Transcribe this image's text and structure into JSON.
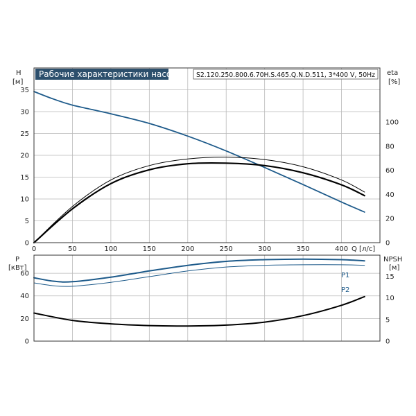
{
  "chart_data": [
    {
      "type": "line",
      "title": "Рабочие характеристики насоса",
      "subtitle": "S2.120.250.800.6.70H.S.465.Q.N.D.511, 3*400 V, 50Hz",
      "xlabel": "Q [л/с]",
      "x_ticks": [
        "0",
        "50",
        "100",
        "150",
        "200",
        "250",
        "300",
        "350",
        "400"
      ],
      "xlim": [
        0,
        450
      ],
      "y_left": {
        "label": "H",
        "unit": "[м]",
        "ticks": [
          "0",
          "5",
          "10",
          "15",
          "20",
          "25",
          "30",
          "35"
        ],
        "ylim": [
          0,
          40
        ]
      },
      "y_right": {
        "label": "eta",
        "unit": "[%]",
        "ticks": [
          "0",
          "20",
          "40",
          "60",
          "80",
          "100"
        ],
        "ylim": [
          0,
          145
        ]
      },
      "grid": true,
      "series": [
        {
          "axis": "left",
          "color": "#1d5a8a",
          "x": [
            0,
            25,
            50,
            100,
            150,
            200,
            250,
            300,
            350,
            400,
            430
          ],
          "values": [
            34.6,
            32.9,
            31.5,
            29.5,
            27.3,
            24.4,
            21.0,
            17.2,
            13.3,
            9.3,
            7.0
          ]
        },
        {
          "axis": "right",
          "color": "#000000",
          "stroke_width": 1,
          "x": [
            0,
            50,
            100,
            150,
            200,
            250,
            300,
            350,
            400,
            430
          ],
          "values": [
            0,
            30,
            52,
            64,
            69.5,
            71,
            69,
            63,
            52,
            42
          ]
        },
        {
          "axis": "right",
          "color": "#000000",
          "stroke_width": 2.2,
          "x": [
            0,
            50,
            100,
            150,
            200,
            250,
            300,
            350,
            400,
            430
          ],
          "values": [
            0,
            28,
            49,
            60.5,
            65.5,
            66,
            64,
            58,
            48,
            39
          ]
        }
      ]
    },
    {
      "type": "line",
      "xlim": [
        0,
        450
      ],
      "x_ticks": [
        "0",
        "50",
        "100",
        "150",
        "200",
        "250",
        "300",
        "350",
        "400"
      ],
      "y_left": {
        "label": "P",
        "unit": "[кВт]",
        "ticks": [
          "0",
          "20",
          "40",
          "60"
        ],
        "ylim": [
          0,
          76
        ]
      },
      "y_right": {
        "label": "NPSH",
        "unit": "[м]",
        "ticks": [
          "0",
          "5",
          "10",
          "15"
        ],
        "ylim": [
          0,
          19.9
        ]
      },
      "grid": true,
      "series": [
        {
          "name": "P1",
          "axis": "left",
          "color": "#1d5a8a",
          "stroke_width": 2,
          "x": [
            0,
            25,
            50,
            100,
            150,
            200,
            250,
            300,
            350,
            400,
            430
          ],
          "values": [
            56,
            53,
            52.5,
            56.5,
            62,
            67,
            70.5,
            72,
            72.5,
            72,
            71
          ]
        },
        {
          "name": "P2",
          "axis": "left",
          "color": "#1d5a8a",
          "stroke_width": 1,
          "x": [
            0,
            25,
            50,
            100,
            150,
            200,
            250,
            300,
            350,
            400,
            430
          ],
          "values": [
            51.5,
            49,
            48.5,
            52,
            57,
            62,
            65.5,
            67,
            67.5,
            67.5,
            67
          ]
        },
        {
          "axis": "right",
          "color": "#000000",
          "stroke_width": 2,
          "x": [
            0,
            50,
            100,
            150,
            200,
            250,
            300,
            350,
            400,
            430
          ],
          "values": [
            6.5,
            4.8,
            4.0,
            3.6,
            3.5,
            3.7,
            4.4,
            5.9,
            8.3,
            10.3
          ]
        }
      ]
    }
  ]
}
